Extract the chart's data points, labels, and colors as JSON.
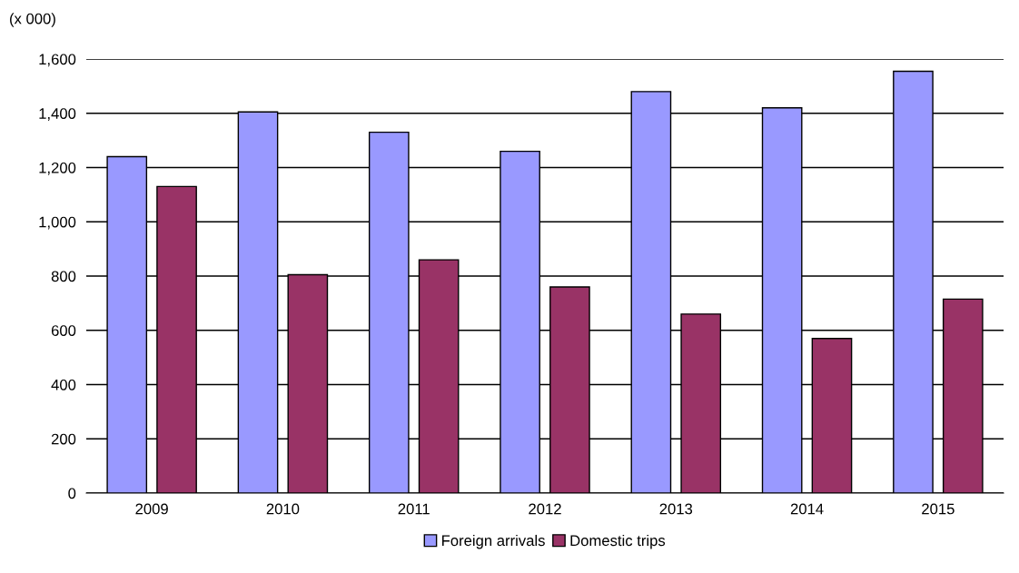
{
  "chart_data": {
    "type": "bar",
    "ylabel": "(x 000)",
    "categories": [
      "2009",
      "2010",
      "2011",
      "2012",
      "2013",
      "2014",
      "2015"
    ],
    "series": [
      {
        "name": "Foreign arrivals",
        "color": "#9999ff",
        "values": [
          1240,
          1405,
          1330,
          1260,
          1480,
          1420,
          1555
        ]
      },
      {
        "name": "Domestic trips",
        "color": "#993366",
        "values": [
          1130,
          805,
          860,
          760,
          660,
          570,
          715
        ]
      }
    ],
    "ylim": [
      0,
      1600
    ],
    "yticks": [
      0,
      {
        "value": 200,
        "label": "200"
      },
      {
        "value": 400,
        "label": "400"
      },
      {
        "value": 600,
        "label": "600"
      },
      {
        "value": 800,
        "label": "800"
      },
      {
        "value": 1000,
        "label": "1,000"
      },
      {
        "value": 1200,
        "label": "1,200"
      },
      {
        "value": 1400,
        "label": "1,400"
      },
      {
        "value": 1600,
        "label": "1,600"
      }
    ],
    "grid": "y",
    "legend": "bottom"
  }
}
